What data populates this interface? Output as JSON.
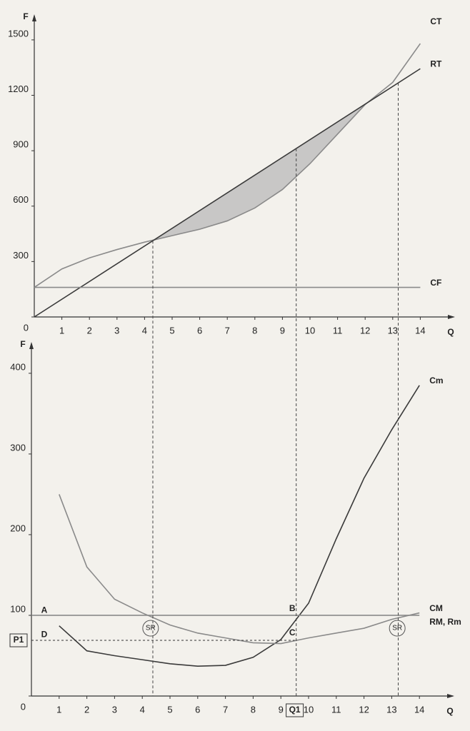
{
  "chart_data": [
    {
      "type": "line",
      "y_label": "F",
      "x_label": "Q",
      "xlim": [
        0,
        15
      ],
      "ylim": [
        0,
        1600
      ],
      "xticks": [
        1,
        2,
        3,
        4,
        5,
        6,
        7,
        8,
        9,
        10,
        11,
        12,
        13,
        14
      ],
      "yticks": [
        0,
        300,
        600,
        900,
        1200,
        1500
      ],
      "series": [
        {
          "name": "CT",
          "color": "#8a8a8a",
          "x": [
            0,
            1,
            2,
            3,
            4,
            5,
            6,
            7,
            8,
            9,
            10,
            11,
            12,
            13,
            14
          ],
          "values": [
            160,
            260,
            320,
            365,
            405,
            440,
            475,
            520,
            590,
            690,
            830,
            990,
            1150,
            1270,
            1480
          ]
        },
        {
          "name": "RT",
          "color": "#3a3a3a",
          "x": [
            0,
            14
          ],
          "values": [
            0,
            1344
          ]
        },
        {
          "name": "CF",
          "color": "#8a8a8a",
          "x": [
            0,
            14
          ],
          "values": [
            160,
            160
          ]
        }
      ],
      "guides_x": [
        4.3,
        9.5,
        13.2
      ]
    },
    {
      "type": "line",
      "y_label": "F",
      "x_label": "Q",
      "xlim": [
        0,
        15
      ],
      "ylim": [
        0,
        430
      ],
      "xticks": [
        1,
        2,
        3,
        4,
        5,
        6,
        7,
        8,
        9,
        10,
        11,
        12,
        13,
        14
      ],
      "yticks": [
        0,
        100,
        200,
        300,
        400
      ],
      "series": [
        {
          "name": "Cm",
          "color": "#3a3a3a",
          "x": [
            1,
            2,
            3,
            4,
            5,
            6,
            7,
            8,
            9,
            10,
            11,
            12,
            13,
            14
          ],
          "values": [
            87,
            56,
            50,
            45,
            40,
            37,
            38,
            48,
            70,
            115,
            195,
            270,
            330,
            385
          ]
        },
        {
          "name": "CM",
          "color": "#8a8a8a",
          "x": [
            1,
            2,
            3,
            4,
            5,
            6,
            7,
            8,
            9,
            10,
            11,
            12,
            13,
            14
          ],
          "values": [
            250,
            160,
            120,
            103,
            88,
            78,
            72,
            66,
            65,
            72,
            78,
            84,
            95,
            103
          ]
        },
        {
          "name": "RM, Rm",
          "color": "#8a8a8a",
          "x": [
            0,
            14
          ],
          "values": [
            100,
            100
          ]
        }
      ],
      "reference_y": {
        "label": "P1",
        "value": 69
      },
      "reference_x": {
        "label": "Q1",
        "value": 9.5
      },
      "annotations": [
        "A",
        "B",
        "C",
        "D",
        "SR",
        "SR"
      ]
    }
  ]
}
